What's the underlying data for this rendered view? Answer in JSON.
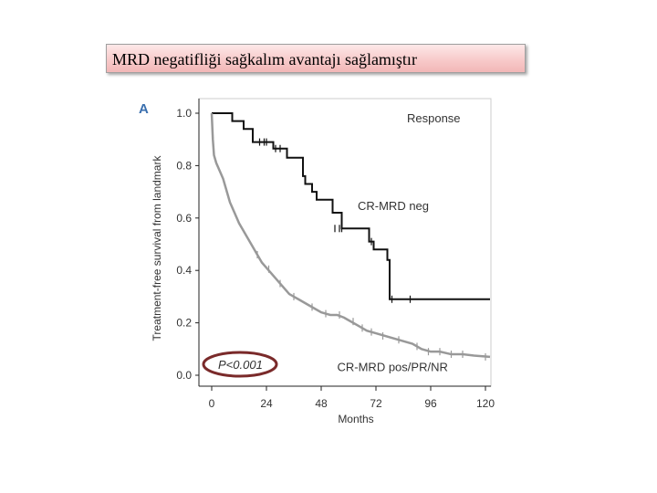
{
  "slide": {
    "title": "MRD negatifliği sağkalım avantajı sağlamıştır"
  },
  "chart_data": {
    "type": "line",
    "panel_label": "A",
    "title": "",
    "xlabel": "Months",
    "ylabel": "Treatment-free survival from landmark",
    "xlim": [
      0,
      120
    ],
    "ylim": [
      0,
      1.0
    ],
    "xticks": [
      "0",
      "24",
      "48",
      "72",
      "96",
      "120"
    ],
    "yticks": [
      "0.0",
      "0.2",
      "0.4",
      "0.6",
      "0.8",
      "1.0"
    ],
    "legend_title": "Response",
    "p_value_label": "P<0.001",
    "colors": {
      "neg": "#111111",
      "pos": "#999999",
      "circle": "#7a2a2a"
    },
    "series": [
      {
        "name": "CR-MRD neg",
        "step": true,
        "x": [
          0,
          9,
          14,
          18,
          27,
          33,
          40,
          41,
          44,
          46,
          53,
          57,
          66,
          69,
          71,
          77,
          78,
          122
        ],
        "y": [
          1.0,
          0.97,
          0.94,
          0.89,
          0.865,
          0.83,
          0.76,
          0.73,
          0.7,
          0.67,
          0.62,
          0.56,
          0.56,
          0.51,
          0.48,
          0.44,
          0.29,
          0.29
        ],
        "censor_x": [
          21,
          23,
          24,
          28,
          30,
          54,
          56,
          57,
          70,
          79,
          87
        ],
        "censor_y": [
          0.89,
          0.89,
          0.89,
          0.865,
          0.865,
          0.56,
          0.56,
          0.56,
          0.51,
          0.29,
          0.29
        ]
      },
      {
        "name": "CR-MRD pos/PR/NR",
        "step": false,
        "x": [
          0,
          0.5,
          1,
          2,
          3,
          4,
          5,
          6,
          7,
          8,
          10,
          12,
          14,
          16,
          18,
          20,
          22,
          24,
          26,
          28,
          30,
          32,
          34,
          36,
          38,
          40,
          42,
          44,
          46,
          48,
          50,
          52,
          55,
          58,
          60,
          64,
          68,
          72,
          76,
          80,
          84,
          88,
          92,
          96,
          100,
          105,
          110,
          115,
          122
        ],
        "y": [
          1.0,
          0.9,
          0.84,
          0.81,
          0.79,
          0.77,
          0.75,
          0.72,
          0.69,
          0.66,
          0.62,
          0.58,
          0.55,
          0.52,
          0.49,
          0.46,
          0.43,
          0.41,
          0.39,
          0.37,
          0.35,
          0.33,
          0.31,
          0.3,
          0.29,
          0.28,
          0.27,
          0.26,
          0.25,
          0.24,
          0.235,
          0.23,
          0.23,
          0.22,
          0.21,
          0.19,
          0.17,
          0.16,
          0.15,
          0.14,
          0.13,
          0.12,
          0.1,
          0.09,
          0.09,
          0.08,
          0.08,
          0.075,
          0.07
        ],
        "censor_x": [
          20,
          25,
          30,
          36,
          44,
          50,
          56,
          62,
          66,
          70,
          75,
          82,
          90,
          95,
          100,
          105,
          110,
          120
        ],
        "censor_y": [
          0.46,
          0.405,
          0.35,
          0.3,
          0.26,
          0.235,
          0.23,
          0.205,
          0.18,
          0.165,
          0.15,
          0.135,
          0.11,
          0.09,
          0.09,
          0.08,
          0.08,
          0.07
        ]
      }
    ],
    "annotations": [
      {
        "text": "CR-MRD neg",
        "x": 64,
        "y": 0.63
      },
      {
        "text": "CR-MRD pos/PR/NR",
        "x": 55,
        "y": 0.015
      }
    ]
  }
}
